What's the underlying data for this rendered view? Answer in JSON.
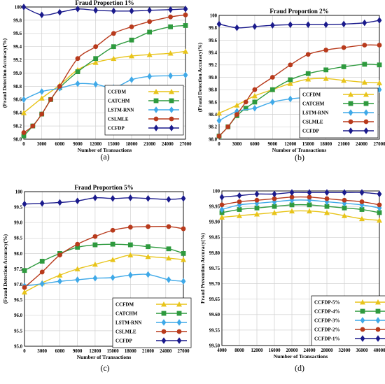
{
  "chart_data": [
    {
      "type": "line",
      "panel_label": "(a)",
      "title": "Fraud Proportion 1%",
      "xlabel": "Number of Transactions",
      "ylabel": "(Fraud Detection Accuracy(%)",
      "xlim": [
        0,
        27000
      ],
      "ylim": [
        98.0,
        100.0
      ],
      "xticks": [
        0,
        3000,
        6000,
        9000,
        12000,
        15000,
        18000,
        21000,
        24000,
        27000
      ],
      "yticks": [
        98.0,
        98.2,
        98.4,
        98.6,
        98.8,
        99.0,
        99.2,
        99.4,
        99.6,
        99.8,
        100
      ],
      "ytick_labels": [
        "98.0",
        "98.2",
        "98.4",
        "98.6",
        "98.8",
        "99.0",
        "99.2",
        "99.4",
        "99.6",
        "99.8",
        "100"
      ],
      "grid": true,
      "legend_position": "right-middle",
      "series": [
        {
          "name": "CCFDM",
          "color": "#e8c41a",
          "marker": "triangle-up",
          "x": [
            0,
            3000,
            6000,
            9000,
            12000,
            15000,
            18000,
            21000,
            24500,
            27000
          ],
          "y": [
            98.4,
            98.62,
            98.82,
            99.05,
            99.16,
            99.22,
            99.26,
            99.28,
            99.3,
            99.33
          ]
        },
        {
          "name": "CATCHM",
          "color": "#2e9a3e",
          "marker": "square",
          "x": [
            0,
            1500,
            3000,
            4500,
            6000,
            9000,
            12000,
            15000,
            18000,
            21000,
            24500,
            27000
          ],
          "y": [
            98.05,
            98.2,
            98.38,
            98.6,
            98.78,
            99.02,
            99.22,
            99.4,
            99.5,
            99.62,
            99.7,
            99.72
          ]
        },
        {
          "name": "LSTM-RNN",
          "color": "#3fa9e8",
          "marker": "diamond",
          "x": [
            0,
            3000,
            6000,
            9000,
            12000,
            15000,
            18000,
            21000,
            24500,
            27000
          ],
          "y": [
            98.6,
            98.72,
            98.77,
            98.84,
            98.83,
            98.78,
            98.9,
            98.95,
            98.96,
            98.97
          ]
        },
        {
          "name": "CSLMLE",
          "color": "#b83a1c",
          "marker": "circle",
          "x": [
            0,
            1500,
            3000,
            4500,
            6000,
            9000,
            12000,
            15000,
            18000,
            21000,
            24500,
            27000
          ],
          "y": [
            98.1,
            98.2,
            98.38,
            98.6,
            98.8,
            99.22,
            99.4,
            99.6,
            99.7,
            99.78,
            99.85,
            99.88
          ]
        },
        {
          "name": "CCFDP",
          "color": "#1a1a8c",
          "marker": "diamond",
          "x": [
            0,
            3000,
            6000,
            9000,
            12000,
            15000,
            18000,
            21000,
            24500,
            27000
          ],
          "y": [
            100.0,
            99.88,
            99.92,
            99.97,
            99.95,
            99.94,
            99.94,
            99.95,
            99.96,
            99.97
          ]
        }
      ]
    },
    {
      "type": "line",
      "panel_label": "(b)",
      "title": "Fraud Proportion 2%",
      "xlabel": "Number of Transactions",
      "ylabel": "(Fraud Detection Accuracy(%)",
      "xlim": [
        0,
        27000
      ],
      "ylim": [
        98.0,
        100.0
      ],
      "xticks": [
        0,
        3000,
        6000,
        9000,
        12000,
        15000,
        18000,
        21000,
        24000,
        27000
      ],
      "yticks": [
        98.0,
        98.2,
        98.4,
        98.6,
        98.8,
        99.0,
        99.2,
        99.4,
        99.6,
        99.8,
        100
      ],
      "ytick_labels": [
        "98.0",
        "98.2",
        "98.4",
        "98.6",
        "98.8",
        "99.0",
        "99.2",
        "99.4",
        "99.6",
        "99.8",
        "100"
      ],
      "grid": true,
      "legend_position": "right-middle",
      "series": [
        {
          "name": "CCFDM",
          "color": "#e8c41a",
          "marker": "triangle-up",
          "x": [
            0,
            3000,
            6000,
            9000,
            12000,
            15000,
            18000,
            21000,
            24500,
            27000
          ],
          "y": [
            98.42,
            98.55,
            98.7,
            98.8,
            98.9,
            98.97,
            98.98,
            98.95,
            98.92,
            98.91
          ]
        },
        {
          "name": "CATCHM",
          "color": "#2e9a3e",
          "marker": "square",
          "x": [
            0,
            1500,
            3000,
            4500,
            6000,
            9000,
            12000,
            15000,
            18000,
            21000,
            24500,
            27000
          ],
          "y": [
            98.05,
            98.2,
            98.38,
            98.5,
            98.6,
            98.8,
            98.96,
            99.06,
            99.12,
            99.17,
            99.21,
            99.2
          ]
        },
        {
          "name": "LSTM-RNN",
          "color": "#3fa9e8",
          "marker": "diamond",
          "x": [
            0,
            3000,
            6000,
            9000,
            12000,
            15000,
            18000,
            21000,
            24500,
            27000
          ],
          "y": [
            98.3,
            98.45,
            98.5,
            98.6,
            98.65,
            98.68,
            98.72,
            98.7,
            98.75,
            98.8
          ]
        },
        {
          "name": "CSLMLE",
          "color": "#b83a1c",
          "marker": "circle",
          "x": [
            0,
            1500,
            3000,
            4500,
            6000,
            9000,
            12000,
            15000,
            18000,
            21000,
            24500,
            27000
          ],
          "y": [
            98.05,
            98.2,
            98.4,
            98.6,
            98.8,
            99.0,
            99.2,
            99.37,
            99.44,
            99.48,
            99.52,
            99.52
          ]
        },
        {
          "name": "CCFDP",
          "color": "#1a1a8c",
          "marker": "diamond",
          "x": [
            0,
            3000,
            6000,
            9000,
            12000,
            15000,
            18000,
            21000,
            24500,
            27000
          ],
          "y": [
            99.86,
            99.8,
            99.82,
            99.84,
            99.85,
            99.85,
            99.85,
            99.86,
            99.88,
            99.92
          ]
        }
      ]
    },
    {
      "type": "line",
      "panel_label": "(c)",
      "title": "Fraud Proportion 5%",
      "xlabel": "Number of Transactions",
      "ylabel": "(Fraud Detection Accuracy(%)",
      "xlim": [
        0,
        27000
      ],
      "ylim": [
        95.0,
        100.0
      ],
      "xticks": [
        0,
        3000,
        6000,
        9000,
        12000,
        15000,
        18000,
        21000,
        24000,
        27000
      ],
      "yticks": [
        95.0,
        95.5,
        96.0,
        96.5,
        97.0,
        97.5,
        98.0,
        98.5,
        99.0,
        99.5,
        100
      ],
      "ytick_labels": [
        "95.0",
        "95.5",
        "96.0",
        "96.5",
        "97.0",
        "97.5",
        "98.0",
        "98.5",
        "99.0",
        "99.5",
        "100"
      ],
      "grid": true,
      "legend_position": "bottom-right",
      "series": [
        {
          "name": "CCFDM",
          "color": "#e8c41a",
          "marker": "triangle-up",
          "x": [
            0,
            3000,
            6000,
            9000,
            12000,
            15000,
            18000,
            21000,
            24500,
            27000
          ],
          "y": [
            96.75,
            97.05,
            97.3,
            97.5,
            97.65,
            97.8,
            97.95,
            97.9,
            97.85,
            97.8
          ]
        },
        {
          "name": "CATCHM",
          "color": "#2e9a3e",
          "marker": "square",
          "x": [
            0,
            3000,
            6000,
            9000,
            12000,
            15000,
            18000,
            21000,
            24500,
            27000
          ],
          "y": [
            97.45,
            97.75,
            98.0,
            98.2,
            98.28,
            98.3,
            98.28,
            98.22,
            98.15,
            98.0
          ]
        },
        {
          "name": "LSTM-RNN",
          "color": "#3fa9e8",
          "marker": "diamond",
          "x": [
            0,
            3000,
            6000,
            9000,
            12000,
            15000,
            18000,
            21000,
            24500,
            27000
          ],
          "y": [
            96.95,
            97.02,
            97.1,
            97.15,
            97.2,
            97.22,
            97.3,
            97.32,
            97.15,
            97.1
          ]
        },
        {
          "name": "CSLMLE",
          "color": "#b83a1c",
          "marker": "circle",
          "x": [
            0,
            3000,
            6000,
            9000,
            12000,
            15000,
            18000,
            21000,
            24500,
            27000
          ],
          "y": [
            96.9,
            97.4,
            97.95,
            98.3,
            98.55,
            98.75,
            98.85,
            98.87,
            98.87,
            98.8
          ]
        },
        {
          "name": "CCFDP",
          "color": "#1a1a8c",
          "marker": "diamond",
          "x": [
            0,
            3000,
            6000,
            9000,
            12000,
            15000,
            18000,
            21000,
            24500,
            27000
          ],
          "y": [
            99.6,
            99.62,
            99.65,
            99.7,
            99.8,
            99.78,
            99.8,
            99.78,
            99.75,
            99.78
          ]
        }
      ]
    },
    {
      "type": "line",
      "panel_label": "(d)",
      "title": "",
      "xlabel": "Number of Transactions",
      "ylabel": "Fraud Prevention Accuracy(%)",
      "xlim": [
        4000,
        40000
      ],
      "ylim": [
        99.5,
        100.0
      ],
      "xticks": [
        4000,
        8000,
        12000,
        16000,
        20000,
        24000,
        28000,
        32000,
        36000,
        40000
      ],
      "yticks": [
        99.5,
        99.55,
        99.6,
        99.65,
        99.7,
        99.75,
        99.8,
        99.85,
        99.9,
        99.95,
        100
      ],
      "ytick_labels": [
        "99.50",
        "99.55",
        "99.60",
        "99.65",
        "99.70",
        "99.75",
        "99.80",
        "99.85",
        "99.90",
        "99.95",
        "100"
      ],
      "grid": true,
      "legend_position": "bottom-right",
      "series": [
        {
          "name": "CCFDP-5%",
          "color": "#e8c41a",
          "marker": "triangle-up",
          "x": [
            4000,
            8000,
            12000,
            16000,
            20000,
            24000,
            28000,
            32000,
            36000,
            40000
          ],
          "y": [
            99.915,
            99.92,
            99.925,
            99.93,
            99.935,
            99.935,
            99.93,
            99.92,
            99.91,
            99.905
          ]
        },
        {
          "name": "CCFDP-4%",
          "color": "#2e9a3e",
          "marker": "square",
          "x": [
            4000,
            8000,
            12000,
            16000,
            20000,
            24000,
            28000,
            32000,
            36000,
            40000
          ],
          "y": [
            99.93,
            99.94,
            99.945,
            99.95,
            99.955,
            99.955,
            99.95,
            99.945,
            99.94,
            99.93
          ]
        },
        {
          "name": "CCFDP-3%",
          "color": "#3fa9e8",
          "marker": "diamond",
          "x": [
            4000,
            8000,
            12000,
            16000,
            20000,
            24000,
            28000,
            32000,
            36000,
            40000
          ],
          "y": [
            99.94,
            99.955,
            99.96,
            99.965,
            99.97,
            99.97,
            99.965,
            99.96,
            99.955,
            99.945
          ]
        },
        {
          "name": "CCFDP-2%",
          "color": "#b83a1c",
          "marker": "circle",
          "x": [
            4000,
            8000,
            12000,
            16000,
            20000,
            24000,
            28000,
            32000,
            36000,
            40000
          ],
          "y": [
            99.955,
            99.965,
            99.97,
            99.975,
            99.98,
            99.98,
            99.975,
            99.97,
            99.965,
            99.955
          ]
        },
        {
          "name": "CCFDP-1%",
          "color": "#1a1a8c",
          "marker": "diamond",
          "x": [
            4000,
            8000,
            12000,
            16000,
            20000,
            24000,
            28000,
            32000,
            36000,
            40000
          ],
          "y": [
            99.98,
            99.985,
            99.99,
            99.99,
            99.995,
            99.995,
            99.995,
            99.995,
            99.995,
            99.99
          ]
        }
      ]
    }
  ]
}
